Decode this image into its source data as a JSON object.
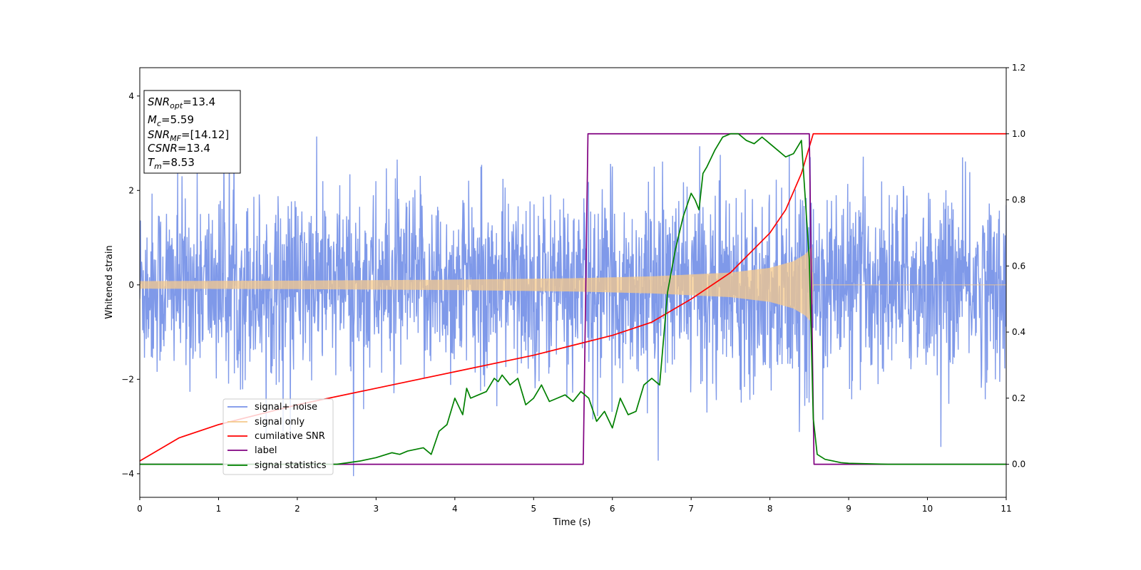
{
  "chart_data": {
    "type": "line",
    "xlabel": "Time (s)",
    "ylabel": "Whitened strain",
    "xlim": [
      0,
      11
    ],
    "ylim_left": [
      -4.5,
      4.6
    ],
    "ylim_right": [
      -0.1,
      1.2
    ],
    "xticks": [
      "0",
      "1",
      "2",
      "3",
      "4",
      "5",
      "6",
      "7",
      "8",
      "9",
      "10",
      "11"
    ],
    "yticks_left": [
      "−4",
      "−2",
      "0",
      "2",
      "4"
    ],
    "yticks_right": [
      "0.0",
      "0.2",
      "0.4",
      "0.6",
      "0.8",
      "1.0",
      "1.2"
    ],
    "legend_location": "lower-left",
    "series": [
      {
        "name": "signal+ noise",
        "axis": "left",
        "color": "#7893e8",
        "style": "noisy band approx ±2.3 (peaks to ~±3.5) with superposed chirp ending at 8.53 s"
      },
      {
        "name": "signal only",
        "axis": "left",
        "color": "#f5c98b",
        "style": "chirp envelope from ±0.08 at t=0 growing to ±0.8 at t≈8.53 s, zero afterwards",
        "envelope_x": [
          0,
          2,
          4,
          5.5,
          6.5,
          7.5,
          8.0,
          8.3,
          8.45,
          8.53,
          8.55,
          11
        ],
        "envelope_y": [
          0.08,
          0.09,
          0.11,
          0.14,
          0.18,
          0.26,
          0.36,
          0.5,
          0.65,
          0.8,
          0,
          0
        ]
      },
      {
        "name": "cumilative SNR",
        "axis": "right",
        "color": "#ff0000",
        "x": [
          0,
          0.5,
          1,
          2,
          3,
          4,
          5,
          5.5,
          6,
          6.5,
          7,
          7.5,
          8,
          8.2,
          8.4,
          8.5,
          8.55,
          9,
          11
        ],
        "y": [
          0.01,
          0.08,
          0.12,
          0.18,
          0.23,
          0.28,
          0.33,
          0.36,
          0.39,
          0.43,
          0.5,
          0.58,
          0.7,
          0.77,
          0.88,
          0.96,
          1.0,
          1.0,
          1.0
        ]
      },
      {
        "name": "label",
        "axis": "right",
        "color": "#800080",
        "x": [
          0,
          5.63,
          5.69,
          8.5,
          8.56,
          11
        ],
        "y": [
          0,
          0,
          1,
          1,
          0,
          0
        ]
      },
      {
        "name": "signal statistics",
        "axis": "right",
        "color": "#008000",
        "x": [
          0,
          1,
          2,
          2.5,
          2.8,
          3.0,
          3.2,
          3.3,
          3.4,
          3.6,
          3.7,
          3.8,
          3.9,
          4.0,
          4.1,
          4.15,
          4.2,
          4.3,
          4.4,
          4.5,
          4.55,
          4.6,
          4.7,
          4.8,
          4.9,
          5.0,
          5.1,
          5.2,
          5.3,
          5.4,
          5.5,
          5.6,
          5.7,
          5.8,
          5.9,
          6.0,
          6.1,
          6.2,
          6.3,
          6.4,
          6.5,
          6.6,
          6.7,
          6.8,
          6.9,
          7.0,
          7.05,
          7.1,
          7.15,
          7.2,
          7.3,
          7.4,
          7.5,
          7.6,
          7.7,
          7.8,
          7.9,
          8.0,
          8.1,
          8.2,
          8.3,
          8.4,
          8.5,
          8.55,
          8.6,
          8.7,
          8.8,
          8.9,
          9.0,
          9.5,
          11
        ],
        "y": [
          0.0,
          0.0,
          0.0,
          0.0,
          0.01,
          0.02,
          0.035,
          0.03,
          0.04,
          0.05,
          0.03,
          0.1,
          0.12,
          0.2,
          0.15,
          0.23,
          0.2,
          0.21,
          0.22,
          0.26,
          0.25,
          0.27,
          0.24,
          0.26,
          0.18,
          0.2,
          0.24,
          0.19,
          0.2,
          0.21,
          0.19,
          0.22,
          0.2,
          0.13,
          0.16,
          0.11,
          0.2,
          0.15,
          0.16,
          0.24,
          0.26,
          0.24,
          0.52,
          0.65,
          0.75,
          0.82,
          0.8,
          0.77,
          0.88,
          0.9,
          0.95,
          0.99,
          1.0,
          1.0,
          0.98,
          0.97,
          0.99,
          0.97,
          0.95,
          0.93,
          0.94,
          0.98,
          0.62,
          0.14,
          0.03,
          0.015,
          0.01,
          0.005,
          0.003,
          0.0,
          0.0
        ]
      }
    ],
    "annotation_box": {
      "lines": [
        {
          "base": "SNR",
          "sub": "opt",
          "value": "=13.4"
        },
        {
          "base": "M",
          "sub": "c",
          "value": "=5.59"
        },
        {
          "base": "SNR",
          "sub": "MF",
          "value": "=[14.12]"
        },
        {
          "base": "CSNR",
          "sub": "",
          "value": "=13.4"
        },
        {
          "base": "T",
          "sub": "m",
          "value": "=8.53"
        }
      ]
    }
  }
}
